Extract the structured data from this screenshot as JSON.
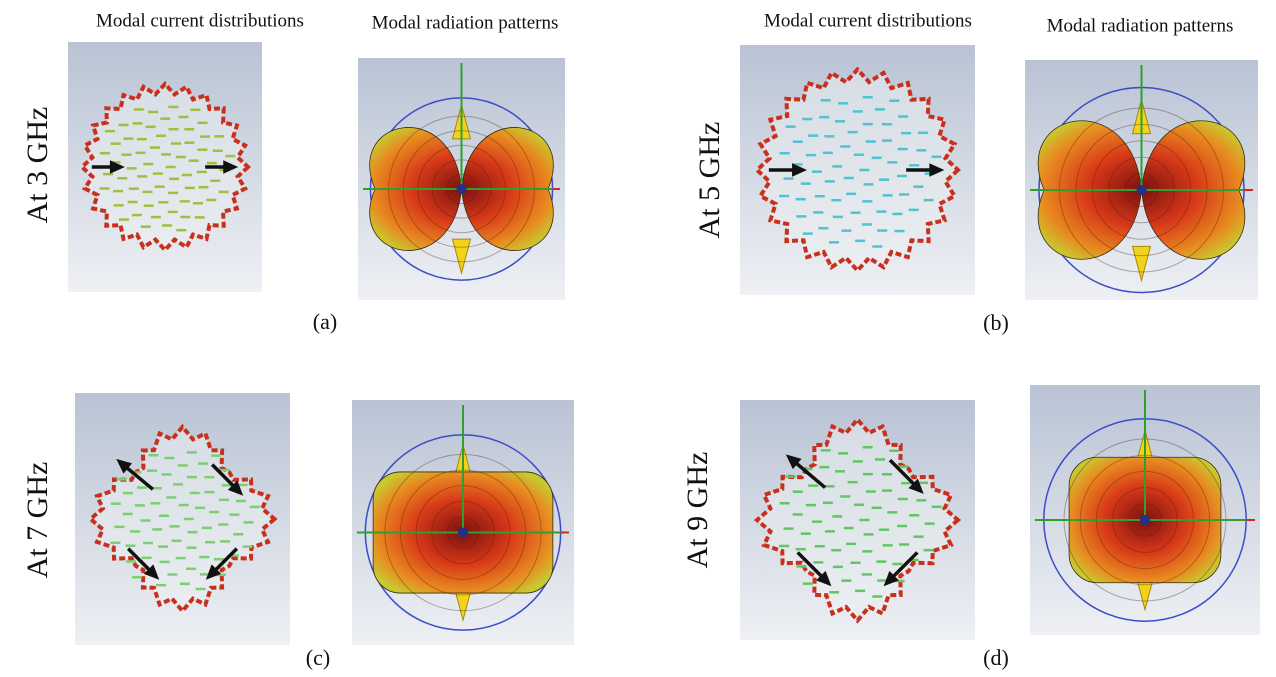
{
  "panels": [
    {
      "current_title": "Modal current distributions",
      "pattern_title": "Modal radiation patterns",
      "freq": "At 3 GHz",
      "caption": "(a)"
    },
    {
      "current_title": "Modal current distributions",
      "pattern_title": "Modal radiation patterns",
      "freq": "At 5 GHz",
      "caption": "(b)"
    },
    {
      "freq": "At 7 GHz",
      "caption": "(c)"
    },
    {
      "freq": "At 9 GHz",
      "caption": "(d)"
    }
  ]
}
